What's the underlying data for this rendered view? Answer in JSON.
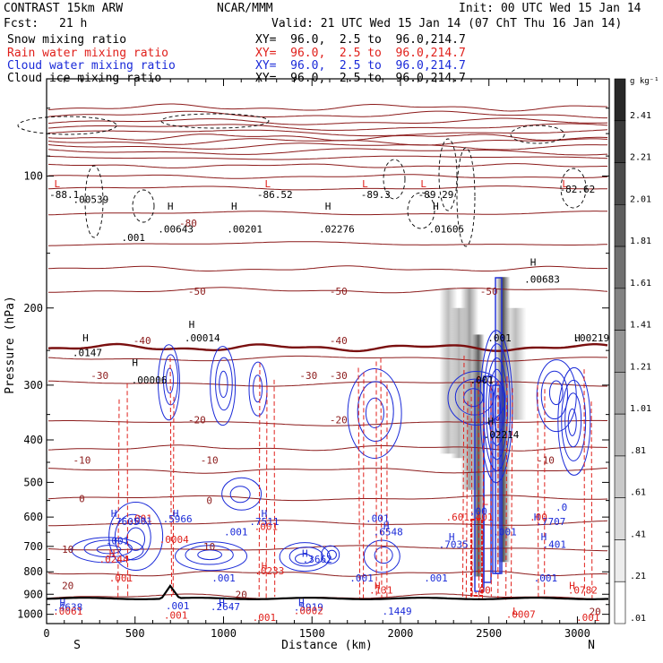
{
  "header": {
    "model": "CONTRAST 15km ARW",
    "institution": "NCAR/MMM",
    "init": "Init: 00 UTC Wed 15 Jan 14",
    "fcst_label": "Fcst:",
    "fcst_value": "21 h",
    "valid": "Valid: 21 UTC Wed 15 Jan 14 (07 ChT Thu 16 Jan 14)",
    "fields": [
      {
        "name": "Snow mixing ratio",
        "color": "#000000",
        "xy": "XY=  96.0,  2.5 to  96.0,214.7"
      },
      {
        "name": "Rain water mixing ratio",
        "color": "#e0201b",
        "xy": "XY=  96.0,  2.5 to  96.0,214.7"
      },
      {
        "name": "Cloud water mixing ratio",
        "color": "#1a2ad8",
        "xy": "XY=  96.0,  2.5 to  96.0,214.7"
      },
      {
        "name": "Cloud ice mixing ratio",
        "color": "#000000",
        "xy": "XY=  96.0,  2.5 to  96.0,214.7"
      }
    ]
  },
  "colorbar": {
    "unit": "g kg⁻¹",
    "labels": [
      "2.41",
      "2.21",
      "2.01",
      "1.81",
      "1.61",
      "1.41",
      "1.21",
      "1.01",
      ".81",
      ".61",
      ".41",
      ".21",
      ".01"
    ]
  },
  "chart_data": {
    "type": "cross-section contour",
    "xlabel": "Distance (km)",
    "ylabel": "Pressure (hPa)",
    "xlim": [
      0,
      3180
    ],
    "ylim": [
      1050,
      60
    ],
    "y_scale": "log-pressure",
    "x_ticks": [
      0,
      500,
      1000,
      1500,
      2000,
      2500,
      3000
    ],
    "y_ticks": [
      100,
      200,
      300,
      400,
      500,
      600,
      700,
      800,
      900,
      1000
    ],
    "x_end_labels": {
      "left": "S",
      "right": "N"
    },
    "temperature_isotherm_labels": [
      {
        "x": 800,
        "p": 128,
        "t": "-80"
      },
      {
        "x": 850,
        "p": 183,
        "t": "-50"
      },
      {
        "x": 1650,
        "p": 183,
        "t": "-50"
      },
      {
        "x": 2500,
        "p": 183,
        "t": "-50"
      },
      {
        "x": 540,
        "p": 237,
        "t": "-40"
      },
      {
        "x": 1650,
        "p": 237,
        "t": "-40"
      },
      {
        "x": 300,
        "p": 285,
        "t": "-30"
      },
      {
        "x": 1480,
        "p": 285,
        "t": "-30"
      },
      {
        "x": 1650,
        "p": 285,
        "t": "-30"
      },
      {
        "x": 850,
        "p": 360,
        "t": "-20"
      },
      {
        "x": 1650,
        "p": 360,
        "t": "-20"
      },
      {
        "x": 200,
        "p": 445,
        "t": "-10"
      },
      {
        "x": 920,
        "p": 445,
        "t": "-10"
      },
      {
        "x": 2820,
        "p": 445,
        "t": "-10"
      },
      {
        "x": 200,
        "p": 545,
        "t": "0"
      },
      {
        "x": 920,
        "p": 550,
        "t": "0"
      },
      {
        "x": 120,
        "p": 710,
        "t": "10"
      },
      {
        "x": 920,
        "p": 700,
        "t": "10"
      },
      {
        "x": 120,
        "p": 860,
        "t": "20"
      },
      {
        "x": 1100,
        "p": 900,
        "t": "20"
      },
      {
        "x": 3100,
        "p": 985,
        "t": "20"
      }
    ],
    "extrema_labels": [
      {
        "x": 60,
        "p": 104,
        "t": "L",
        "color": "#e0201b"
      },
      {
        "x": 100,
        "p": 110,
        "t": "-88.1",
        "color": "#000000"
      },
      {
        "x": 250,
        "p": 113,
        "t": ".00539",
        "color": "#000000"
      },
      {
        "x": 1250,
        "p": 104,
        "t": "L",
        "color": "#e0201b"
      },
      {
        "x": 1290,
        "p": 110,
        "t": "-86.52",
        "color": "#000000"
      },
      {
        "x": 1800,
        "p": 104,
        "t": "L",
        "color": "#e0201b"
      },
      {
        "x": 1860,
        "p": 110,
        "t": "-89.3",
        "color": "#000000"
      },
      {
        "x": 2130,
        "p": 104,
        "t": "L",
        "color": "#e0201b"
      },
      {
        "x": 2200,
        "p": 110,
        "t": "-89.29",
        "color": "#000000"
      },
      {
        "x": 2930,
        "p": 104,
        "t": "L",
        "color": "#e0201b"
      },
      {
        "x": 3000,
        "p": 107,
        "t": "-82.62",
        "color": "#000000"
      },
      {
        "x": 700,
        "p": 117,
        "t": "H",
        "color": "#000000"
      },
      {
        "x": 730,
        "p": 132,
        "t": ".00643",
        "color": "#000000"
      },
      {
        "x": 1060,
        "p": 117,
        "t": "H",
        "color": "#000000"
      },
      {
        "x": 1120,
        "p": 132,
        "t": ".00201",
        "color": "#000000"
      },
      {
        "x": 1590,
        "p": 117,
        "t": "H",
        "color": "#000000"
      },
      {
        "x": 1640,
        "p": 132,
        "t": ".02276",
        "color": "#000000"
      },
      {
        "x": 2200,
        "p": 117,
        "t": "H",
        "color": "#000000"
      },
      {
        "x": 2260,
        "p": 132,
        "t": ".01605",
        "color": "#000000"
      },
      {
        "x": 490,
        "p": 138,
        "t": ".001",
        "color": "#000000"
      },
      {
        "x": 2750,
        "p": 157,
        "t": "H",
        "color": "#000000"
      },
      {
        "x": 2800,
        "p": 172,
        "t": ".00683",
        "color": "#000000"
      },
      {
        "x": 220,
        "p": 234,
        "t": "H",
        "color": "#000000"
      },
      {
        "x": 230,
        "p": 253,
        "t": ".0147",
        "color": "#000000"
      },
      {
        "x": 820,
        "p": 218,
        "t": "H",
        "color": "#000000"
      },
      {
        "x": 880,
        "p": 234,
        "t": ".00014",
        "color": "#000000"
      },
      {
        "x": 500,
        "p": 266,
        "t": "H",
        "color": "#000000"
      },
      {
        "x": 580,
        "p": 292,
        "t": ".00006",
        "color": "#000000"
      },
      {
        "x": 3000,
        "p": 234,
        "t": "H",
        "color": "#000000"
      },
      {
        "x": 3080,
        "p": 234,
        "t": ".00219",
        "color": "#000000"
      },
      {
        "x": 2560,
        "p": 234,
        "t": ".001",
        "color": "#000000"
      },
      {
        "x": 2460,
        "p": 292,
        "t": ".001",
        "color": "#000000"
      },
      {
        "x": 2510,
        "p": 362,
        "t": "H",
        "color": "#000000"
      },
      {
        "x": 2570,
        "p": 389,
        "t": ".02214",
        "color": "#000000"
      },
      {
        "x": 2480,
        "p": 552,
        "t": "L",
        "color": "#e0201b"
      },
      {
        "x": 380,
        "p": 588,
        "t": "H",
        "color": "#1a2ad8"
      },
      {
        "x": 440,
        "p": 614,
        "t": ".7605",
        "color": "#1a2ad8"
      },
      {
        "x": 730,
        "p": 588,
        "t": "H",
        "color": "#1a2ad8"
      },
      {
        "x": 740,
        "p": 605,
        "t": ".5966",
        "color": "#1a2ad8"
      },
      {
        "x": 1230,
        "p": 588,
        "t": "H",
        "color": "#1a2ad8"
      },
      {
        "x": 1230,
        "p": 614,
        "t": ".7511",
        "color": "#1a2ad8"
      },
      {
        "x": 530,
        "p": 604,
        "t": ".001",
        "color": "#e0201b"
      },
      {
        "x": 530,
        "p": 612,
        "t": ".001",
        "color": "#1a2ad8"
      },
      {
        "x": 1240,
        "p": 630,
        "t": ".001",
        "color": "#e0201b"
      },
      {
        "x": 1870,
        "p": 604,
        "t": ".001",
        "color": "#1a2ad8"
      },
      {
        "x": 1920,
        "p": 628,
        "t": "H",
        "color": "#1a2ad8"
      },
      {
        "x": 1930,
        "p": 648,
        "t": ".6548",
        "color": "#1a2ad8"
      },
      {
        "x": 2390,
        "p": 600,
        "t": ".601.401",
        "color": "#e0201b"
      },
      {
        "x": 2440,
        "p": 582,
        "t": ".00",
        "color": "#1a2ad8"
      },
      {
        "x": 2770,
        "p": 600,
        "t": "H",
        "color": "#1a2ad8"
      },
      {
        "x": 2850,
        "p": 614,
        "t": ".7707",
        "color": "#1a2ad8"
      },
      {
        "x": 2780,
        "p": 600,
        "t": ".00",
        "color": "#e0201b"
      },
      {
        "x": 2910,
        "p": 570,
        "t": ".0",
        "color": "#1a2ad8"
      },
      {
        "x": 1070,
        "p": 648,
        "t": ".001",
        "color": "#1a2ad8"
      },
      {
        "x": 2590,
        "p": 648,
        "t": ".001",
        "color": "#1a2ad8"
      },
      {
        "x": 2290,
        "p": 665,
        "t": "H",
        "color": "#1a2ad8"
      },
      {
        "x": 2300,
        "p": 693,
        "t": ".7035",
        "color": "#1a2ad8"
      },
      {
        "x": 2810,
        "p": 665,
        "t": "H",
        "color": "#1a2ad8"
      },
      {
        "x": 2870,
        "p": 693,
        "t": ".401",
        "color": "#1a2ad8"
      },
      {
        "x": 400,
        "p": 680,
        "t": ".001",
        "color": "#1a2ad8"
      },
      {
        "x": 720,
        "p": 675,
        "t": ".0004",
        "color": "#e0201b"
      },
      {
        "x": 370,
        "p": 725,
        "t": "H",
        "color": "#e0201b"
      },
      {
        "x": 380,
        "p": 748,
        "t": ".0244",
        "color": "#e0201b"
      },
      {
        "x": 1460,
        "p": 725,
        "t": "H",
        "color": "#1a2ad8"
      },
      {
        "x": 1530,
        "p": 748,
        "t": ".3662",
        "color": "#1a2ad8"
      },
      {
        "x": 1230,
        "p": 775,
        "t": "H",
        "color": "#e0201b"
      },
      {
        "x": 1260,
        "p": 795,
        "t": ".0233",
        "color": "#e0201b"
      },
      {
        "x": 420,
        "p": 825,
        "t": ".001",
        "color": "#e0201b"
      },
      {
        "x": 1000,
        "p": 825,
        "t": ".001",
        "color": "#1a2ad8"
      },
      {
        "x": 1780,
        "p": 825,
        "t": ".001",
        "color": "#1a2ad8"
      },
      {
        "x": 2200,
        "p": 825,
        "t": ".001",
        "color": "#1a2ad8"
      },
      {
        "x": 2820,
        "p": 825,
        "t": ".001",
        "color": "#1a2ad8"
      },
      {
        "x": 1870,
        "p": 860,
        "t": "H",
        "color": "#e0201b"
      },
      {
        "x": 1890,
        "p": 880,
        "t": ".131",
        "color": "#e0201b"
      },
      {
        "x": 2970,
        "p": 860,
        "t": "H",
        "color": "#e0201b"
      },
      {
        "x": 3030,
        "p": 880,
        "t": ".0782",
        "color": "#e0201b"
      },
      {
        "x": 2460,
        "p": 880,
        "t": ".00",
        "color": "#e0201b"
      },
      {
        "x": 90,
        "p": 940,
        "t": "H",
        "color": "#1a2ad8"
      },
      {
        "x": 120,
        "p": 962,
        "t": ".4638",
        "color": "#1a2ad8"
      },
      {
        "x": 120,
        "p": 982,
        "t": ".0061",
        "color": "#e0201b"
      },
      {
        "x": 740,
        "p": 955,
        "t": ".001",
        "color": "#1a2ad8"
      },
      {
        "x": 730,
        "p": 1003,
        "t": ".001",
        "color": "#e0201b"
      },
      {
        "x": 990,
        "p": 940,
        "t": "H",
        "color": "#1a2ad8"
      },
      {
        "x": 1010,
        "p": 960,
        "t": ".2647",
        "color": "#1a2ad8"
      },
      {
        "x": 1440,
        "p": 940,
        "t": "H",
        "color": "#1a2ad8"
      },
      {
        "x": 1480,
        "p": 962,
        "t": ".5919",
        "color": "#1a2ad8"
      },
      {
        "x": 1480,
        "p": 980,
        "t": ".0002",
        "color": "#e0201b"
      },
      {
        "x": 1230,
        "p": 1015,
        "t": ".001",
        "color": "#e0201b"
      },
      {
        "x": 1980,
        "p": 982,
        "t": ".1449",
        "color": "#1a2ad8"
      },
      {
        "x": 2650,
        "p": 982,
        "t": "L",
        "color": "#e0201b"
      },
      {
        "x": 2680,
        "p": 1000,
        "t": ".0007",
        "color": "#e0201b"
      },
      {
        "x": 3060,
        "p": 1015,
        "t": ".001",
        "color": "#e0201b"
      }
    ]
  }
}
